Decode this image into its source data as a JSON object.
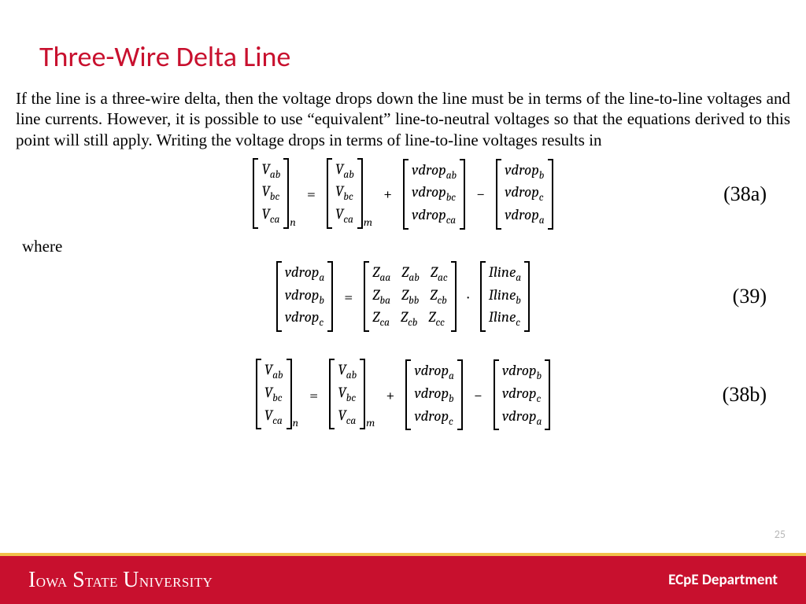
{
  "colors": {
    "accent": "#c8102e",
    "gold": "#f1c04a",
    "background": "#ffffff",
    "muted": "#b8b8b8"
  },
  "title": "Three-Wire Delta Line",
  "paragraph": "If the line is a three-wire delta, then the voltage drops down the line must be in terms of the line-to-line voltages and line currents. However, it is possible to use “equivalent” line-to-neutral voltages so that the equations derived to this point will still apply. Writing the voltage drops in terms of line-to-line voltages results in",
  "where": "where",
  "eq38a": {
    "num": "(38a)",
    "lhs_sub": "n",
    "rhs1_sub": "m",
    "V": [
      "V",
      "V",
      "V"
    ],
    "V_sub": [
      "ab",
      "bc",
      "ca"
    ],
    "d1": [
      "vdrop",
      "vdrop",
      "vdrop"
    ],
    "d1_sub": [
      "ab",
      "bc",
      "ca"
    ],
    "d2": [
      "vdrop",
      "vdrop",
      "vdrop"
    ],
    "d2_sub": [
      "b",
      "c",
      "a"
    ]
  },
  "eq39": {
    "num": "(39)",
    "lhs": [
      "vdrop",
      "vdrop",
      "vdrop"
    ],
    "lhs_sub": [
      "a",
      "b",
      "c"
    ],
    "Z": [
      [
        "Z",
        "Z",
        "Z"
      ],
      [
        "Z",
        "Z",
        "Z"
      ],
      [
        "Z",
        "Z",
        "Z"
      ]
    ],
    "Z_sub": [
      [
        "aa",
        "ab",
        "ac"
      ],
      [
        "ba",
        "bb",
        "cb"
      ],
      [
        "ca",
        "cb",
        "cc"
      ]
    ],
    "I": [
      "Iline",
      "Iline",
      "Iline"
    ],
    "I_sub": [
      "a",
      "b",
      "c"
    ]
  },
  "eq38b": {
    "num": "(38b)",
    "lhs_sub": "n",
    "rhs1_sub": "m",
    "V": [
      "V",
      "V",
      "V"
    ],
    "V_sub": [
      "ab",
      "bc",
      "ca"
    ],
    "d1": [
      "vdrop",
      "vdrop",
      "vdrop"
    ],
    "d1_sub": [
      "a",
      "b",
      "c"
    ],
    "d2": [
      "vdrop",
      "vdrop",
      "vdrop"
    ],
    "d2_sub": [
      "b",
      "c",
      "a"
    ]
  },
  "page_number": "25",
  "footer": {
    "university": "Iowa State University",
    "department": "ECpE Department"
  }
}
